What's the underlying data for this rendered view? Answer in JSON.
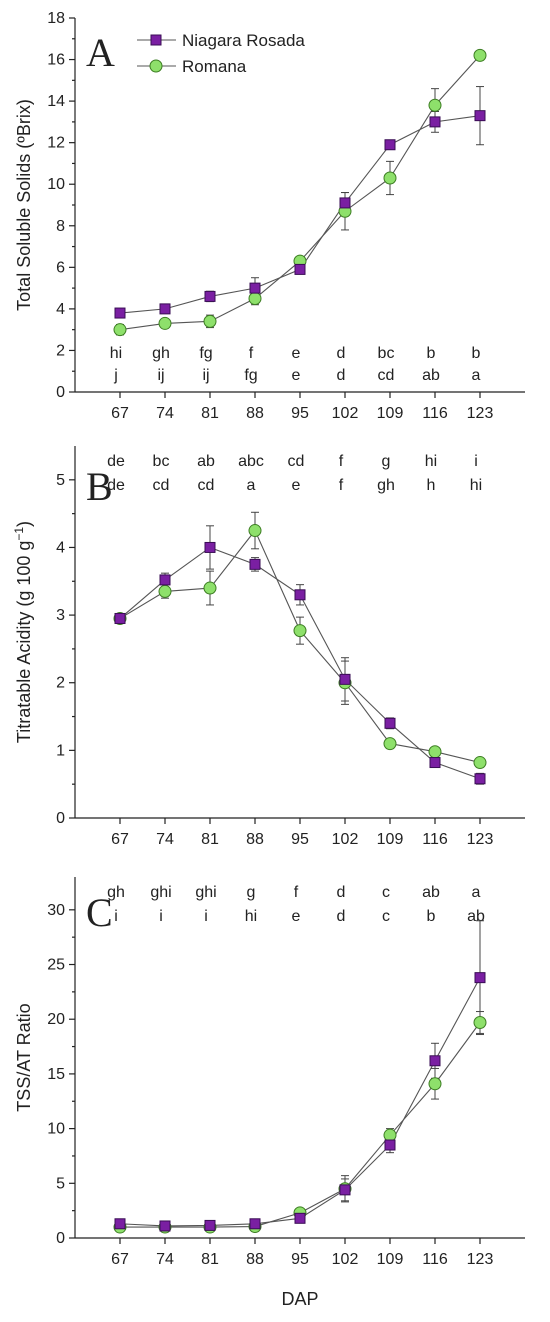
{
  "colors": {
    "niagara": "#7a1fa2",
    "niagara_stroke": "#3a0d55",
    "romana": "#8ee06b",
    "romana_stroke": "#3c7d22"
  },
  "legend": [
    {
      "name": "Niagara Rosada",
      "marker": "square"
    },
    {
      "name": "Romana",
      "marker": "circle"
    }
  ],
  "xaxis_label": "DAP",
  "chart_data": [
    {
      "type": "line",
      "panel": "A",
      "ylabel": "Total Soluble Solids (ºBrix)",
      "x": [
        67,
        74,
        81,
        88,
        95,
        102,
        109,
        116,
        123
      ],
      "ylim": [
        0,
        18
      ],
      "yticks": [
        0,
        2,
        4,
        6,
        8,
        10,
        12,
        14,
        16,
        18
      ],
      "legend_position": "top-left",
      "series": [
        {
          "name": "Niagara Rosada",
          "values": [
            3.8,
            4.0,
            4.6,
            5.0,
            5.9,
            9.1,
            11.9,
            13.0,
            13.3
          ],
          "errors": [
            0.15,
            0.15,
            0.25,
            0.5,
            0.15,
            0.5,
            0.2,
            0.5,
            1.4
          ]
        },
        {
          "name": "Romana",
          "values": [
            3.0,
            3.3,
            3.4,
            4.5,
            6.3,
            8.7,
            10.3,
            13.8,
            16.2
          ],
          "errors": [
            0.25,
            0.2,
            0.3,
            0.3,
            0.2,
            0.9,
            0.8,
            0.8,
            0.2
          ]
        }
      ],
      "letters_top": [
        "hi",
        "gh",
        "fg",
        "f",
        "e",
        "d",
        "bc",
        "b",
        "b"
      ],
      "letters_bottom": [
        "j",
        "ij",
        "ij",
        "fg",
        "e",
        "d",
        "cd",
        "ab",
        "a"
      ]
    },
    {
      "type": "line",
      "panel": "B",
      "ylabel": "Titratable Acidity (g 100 g⁻¹)",
      "x": [
        67,
        74,
        81,
        88,
        95,
        102,
        109,
        116,
        123
      ],
      "ylim": [
        0,
        5.5
      ],
      "yticks": [
        0,
        1,
        2,
        3,
        4,
        5
      ],
      "series": [
        {
          "name": "Niagara Rosada",
          "values": [
            2.95,
            3.52,
            4.0,
            3.75,
            3.3,
            2.05,
            1.4,
            0.82,
            0.58
          ],
          "errors": [
            0.05,
            0.1,
            0.32,
            0.1,
            0.15,
            0.32,
            0.08,
            0.06,
            0.08
          ]
        },
        {
          "name": "Romana",
          "values": [
            2.95,
            3.35,
            3.4,
            4.25,
            2.77,
            2.0,
            1.1,
            0.98,
            0.82
          ],
          "errors": [
            0.05,
            0.1,
            0.25,
            0.27,
            0.2,
            0.32,
            0.06,
            0.05,
            0.06
          ]
        }
      ],
      "letters_top": [
        "de",
        "bc",
        "ab",
        "abc",
        "cd",
        "f",
        "g",
        "hi",
        "i"
      ],
      "letters_bottom": [
        "de",
        "cd",
        "cd",
        "a",
        "e",
        "f",
        "gh",
        "h",
        "hi"
      ]
    },
    {
      "type": "line",
      "panel": "C",
      "ylabel": "TSS/AT Ratio",
      "x": [
        67,
        74,
        81,
        88,
        95,
        102,
        109,
        116,
        123
      ],
      "ylim": [
        0,
        33
      ],
      "yticks": [
        0,
        5,
        10,
        15,
        20,
        25,
        30
      ],
      "series": [
        {
          "name": "Niagara Rosada",
          "values": [
            1.3,
            1.1,
            1.15,
            1.3,
            1.8,
            4.4,
            8.5,
            16.2,
            23.8
          ],
          "errors": [
            0.2,
            0.15,
            0.15,
            0.2,
            0.2,
            1.0,
            0.7,
            1.6,
            5.2
          ]
        },
        {
          "name": "Romana",
          "values": [
            1.0,
            1.0,
            1.0,
            1.05,
            2.3,
            4.5,
            9.4,
            14.1,
            19.7
          ],
          "errors": [
            0.2,
            0.15,
            0.15,
            0.2,
            0.3,
            1.2,
            0.6,
            1.4,
            1.0
          ]
        }
      ],
      "letters_top": [
        "gh",
        "ghi",
        "ghi",
        "g",
        "f",
        "d",
        "c",
        "ab",
        "a"
      ],
      "letters_bottom": [
        "i",
        "i",
        "i",
        "hi",
        "e",
        "d",
        "c",
        "b",
        "ab"
      ]
    }
  ]
}
